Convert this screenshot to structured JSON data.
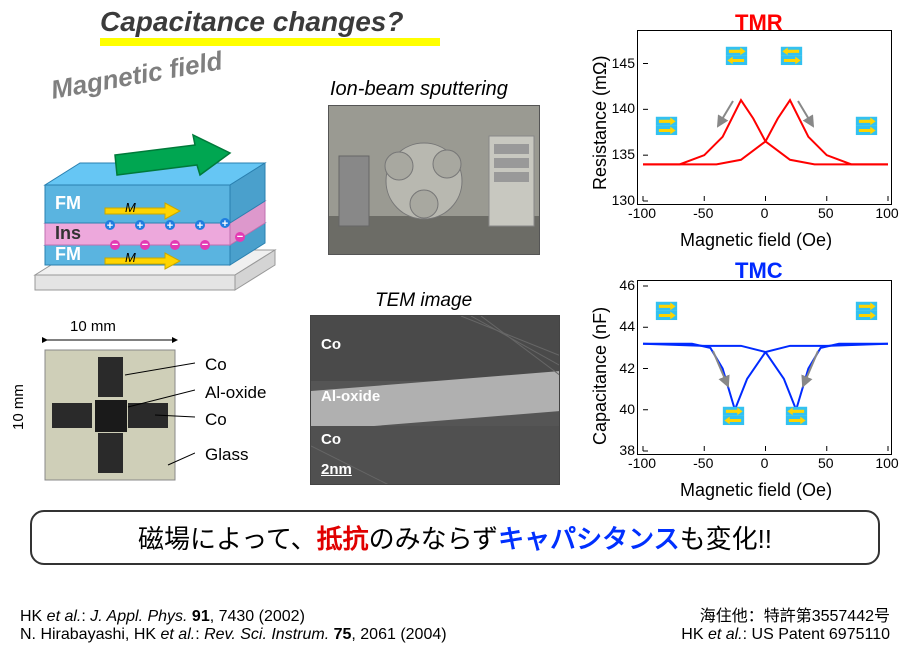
{
  "title": "Capacitance changes?",
  "magnetic_field_label": "Magnetic field",
  "stack": {
    "layers": [
      {
        "label": "FM",
        "color": "#66c6f4",
        "M": "M"
      },
      {
        "label": "Ins",
        "color": "#f4b8e8"
      },
      {
        "label": "FM",
        "color": "#66c6f4",
        "M": "M"
      }
    ],
    "arrow_color": "#00a651",
    "M_arrow_color": "#ffd400",
    "plus_color": "#1f7de0",
    "minus_color": "#e43ab4"
  },
  "sample": {
    "dim_top": "10 mm",
    "dim_left": "10 mm",
    "labels": [
      "Co",
      "Al-oxide",
      "Co",
      "Glass"
    ]
  },
  "ion_beam": {
    "label": "Ion-beam sputtering"
  },
  "tem": {
    "label": "TEM image",
    "layers": [
      "Co",
      "Al-oxide",
      "Co"
    ],
    "scale": "2nm"
  },
  "chart_tmr": {
    "title": "TMR",
    "title_color": "#ff0000",
    "ylabel": "Resistance (mΩ)",
    "xlabel": "Magnetic field (Oe)",
    "xlim": [
      -100,
      100
    ],
    "xticks": [
      -100,
      -50,
      0,
      50,
      100
    ],
    "ylim": [
      130,
      148
    ],
    "yticks": [
      130,
      135,
      140,
      145
    ],
    "line_color": "#ff0000",
    "series_a": [
      [
        -100,
        134
      ],
      [
        -70,
        134
      ],
      [
        -50,
        135
      ],
      [
        -35,
        137
      ],
      [
        -20,
        141
      ],
      [
        -10,
        139
      ],
      [
        0,
        136.5
      ],
      [
        20,
        134.5
      ],
      [
        40,
        134
      ],
      [
        100,
        134
      ]
    ],
    "series_b": [
      [
        -100,
        134
      ],
      [
        -40,
        134
      ],
      [
        -20,
        134.5
      ],
      [
        0,
        136.5
      ],
      [
        10,
        139
      ],
      [
        20,
        141
      ],
      [
        35,
        137
      ],
      [
        50,
        135
      ],
      [
        70,
        134
      ],
      [
        100,
        134
      ]
    ]
  },
  "chart_tmc": {
    "title": "TMC",
    "title_color": "#002aff",
    "ylabel": "Capacitance (nF)",
    "xlabel": "Magnetic field (Oe)",
    "xlim": [
      -100,
      100
    ],
    "xticks": [
      -100,
      -50,
      0,
      50,
      100
    ],
    "ylim": [
      38,
      46
    ],
    "yticks": [
      38,
      40,
      42,
      44,
      46
    ],
    "line_color": "#002aff",
    "series_a": [
      [
        -100,
        43.2
      ],
      [
        -60,
        43.2
      ],
      [
        -45,
        43
      ],
      [
        -35,
        42
      ],
      [
        -25,
        40
      ],
      [
        -15,
        41.5
      ],
      [
        0,
        42.8
      ],
      [
        20,
        43.1
      ],
      [
        50,
        43.1
      ],
      [
        100,
        43.2
      ]
    ],
    "series_b": [
      [
        -100,
        43.2
      ],
      [
        -50,
        43.1
      ],
      [
        -20,
        43.1
      ],
      [
        0,
        42.8
      ],
      [
        15,
        41.5
      ],
      [
        25,
        40
      ],
      [
        35,
        42
      ],
      [
        45,
        43
      ],
      [
        60,
        43.2
      ],
      [
        100,
        43.2
      ]
    ]
  },
  "mag_states": {
    "parallel_color": "#33c1f0",
    "anti_color": "#33c1f0",
    "arrow_color": "#ffd400"
  },
  "summary": {
    "parts": [
      {
        "text": "磁場によって、",
        "cls": "jp-black"
      },
      {
        "text": "抵抗",
        "cls": "jp-red"
      },
      {
        "text": "のみならず",
        "cls": "jp-black"
      },
      {
        "text": "キャパシタンス",
        "cls": "jp-blue"
      },
      {
        "text": "も変化!!",
        "cls": "jp-black"
      }
    ]
  },
  "refs_left": [
    {
      "pre": "HK ",
      "em": "et al.",
      "post": ": ",
      "em2": "J. Appl. Phys. ",
      "bold": "91",
      "tail": ", 7430 (2002)"
    },
    {
      "pre": "N. Hirabayashi, HK ",
      "em": "et al.",
      "post": ": ",
      "em2": "Rev. Sci. Instrum. ",
      "bold": "75",
      "tail": ", 2061 (2004)"
    }
  ],
  "refs_right": [
    {
      "text": "海住他：特許第3557442号"
    },
    {
      "pre": "HK ",
      "em": "et al.",
      "tail": ": US Patent 6975110"
    }
  ]
}
